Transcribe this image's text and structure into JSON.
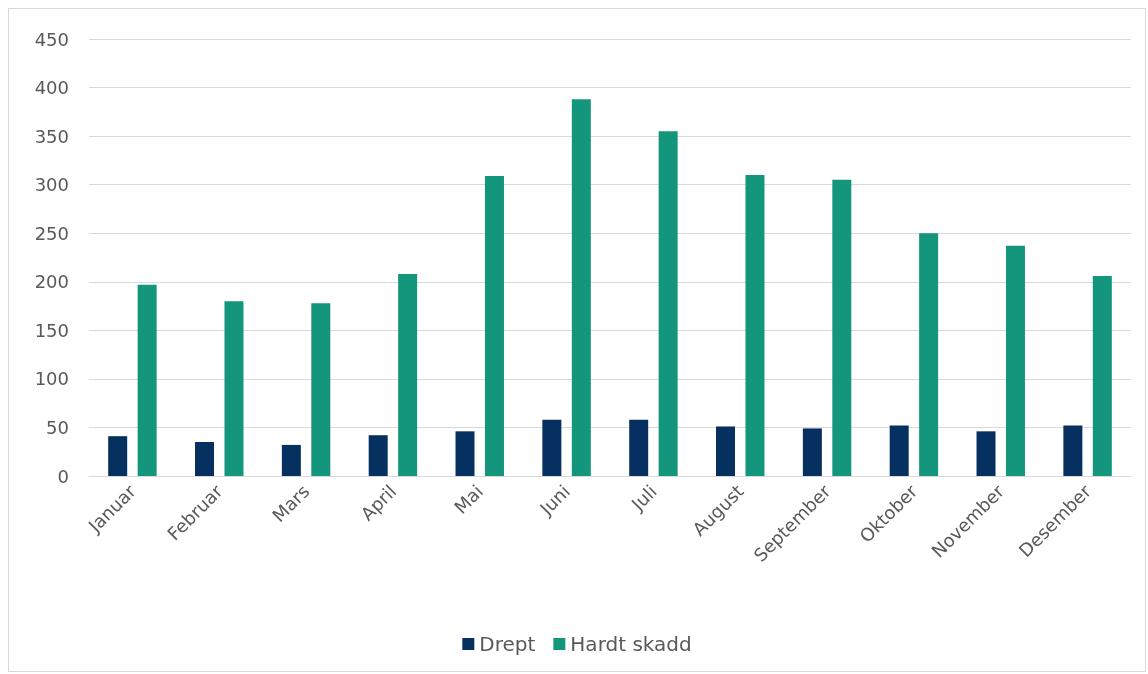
{
  "chart_data": {
    "type": "bar",
    "categories": [
      "Januar",
      "Februar",
      "Mars",
      "April",
      "Mai",
      "Juni",
      "Juli",
      "August",
      "September",
      "Oktober",
      "November",
      "Desember"
    ],
    "series": [
      {
        "name": "Drept",
        "color": "#06305f",
        "values": [
          41,
          35,
          32,
          42,
          46,
          58,
          58,
          51,
          49,
          52,
          46,
          52
        ]
      },
      {
        "name": "Hardt skadd",
        "color": "#13967b",
        "values": [
          197,
          180,
          178,
          208,
          309,
          388,
          355,
          310,
          305,
          250,
          237,
          206
        ]
      }
    ],
    "ylim": [
      0,
      450
    ],
    "yticks": [
      0,
      50,
      100,
      150,
      200,
      250,
      300,
      350,
      400,
      450
    ],
    "grid": "y",
    "legend": "bottom"
  }
}
